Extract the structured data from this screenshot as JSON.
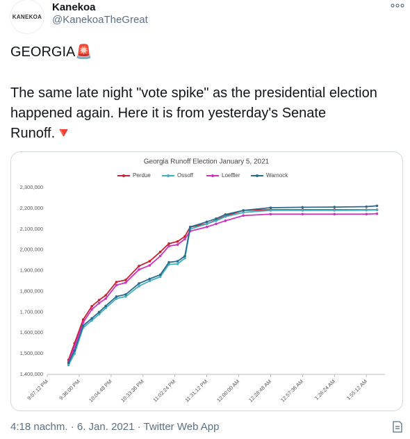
{
  "tweet": {
    "avatar_text": "KANEKOA",
    "name": "Kanekoa",
    "handle": "@KanekoaTheGreat",
    "text": [
      "GEORGIA🚨",
      "The same late night \"vote spike\" as the presidential election happened again. Here it is from yesterday's Senate Runoff.🔻"
    ],
    "footer": "4:18 nachm. · 6. Jan. 2021 · Twitter Web App"
  },
  "chart_data": {
    "type": "line",
    "title": "Georgia Runoff Election January 5, 2021",
    "x": [
      21.44,
      21.53,
      21.66,
      21.79,
      21.9,
      22.0,
      22.16,
      22.3,
      22.5,
      22.66,
      22.82,
      22.95,
      23.08,
      23.19,
      23.27,
      23.52,
      23.66,
      23.8,
      24.07,
      24.48,
      24.96,
      25.44,
      25.92,
      26.08
    ],
    "series": [
      {
        "name": "Perdue",
        "color": "#c8202c",
        "values": [
          1470000,
          1550000,
          1664000,
          1728000,
          1758000,
          1781000,
          1845000,
          1855000,
          1922000,
          1945000,
          1990000,
          2030000,
          2040000,
          2065000,
          2110000,
          2125000,
          2143000,
          2163000,
          2190000,
          2193000,
          2193000,
          2193000,
          2193000,
          2193000
        ]
      },
      {
        "name": "Ossoff",
        "color": "#3fb0c0",
        "values": [
          1445000,
          1500000,
          1625000,
          1660000,
          1690000,
          1720000,
          1765000,
          1775000,
          1825000,
          1850000,
          1870000,
          1930000,
          1932000,
          1960000,
          2100000,
          2125000,
          2140000,
          2160000,
          2180000,
          2190000,
          2190000,
          2190000,
          2191000,
          2192000
        ]
      },
      {
        "name": "Loeffler",
        "color": "#d030c0",
        "values": [
          1460000,
          1535000,
          1650000,
          1713000,
          1743000,
          1765000,
          1830000,
          1842000,
          1905000,
          1925000,
          1970000,
          2018000,
          2025000,
          2052000,
          2090000,
          2110000,
          2125000,
          2140000,
          2165000,
          2172000,
          2172000,
          2172000,
          2172000,
          2174000
        ]
      },
      {
        "name": "Warnock",
        "color": "#2a6a8c",
        "values": [
          1455000,
          1515000,
          1635000,
          1670000,
          1700000,
          1730000,
          1775000,
          1785000,
          1838000,
          1860000,
          1880000,
          1940000,
          1945000,
          1970000,
          2110000,
          2135000,
          2150000,
          2170000,
          2190000,
          2203000,
          2205000,
          2206000,
          2208000,
          2212000
        ]
      }
    ],
    "xlim": [
      21.12,
      26.2
    ],
    "xticks": [
      {
        "value": 21.12,
        "label": "9:07:12 PM"
      },
      {
        "value": 21.6,
        "label": "9:36:00 PM"
      },
      {
        "value": 22.08,
        "label": "10:04:48 PM"
      },
      {
        "value": 22.56,
        "label": "10:33:36 PM"
      },
      {
        "value": 23.04,
        "label": "11:02:24 PM"
      },
      {
        "value": 23.52,
        "label": "11:31:12 PM"
      },
      {
        "value": 24.0,
        "label": "12:00:00 AM"
      },
      {
        "value": 24.48,
        "label": "12:28:48 AM"
      },
      {
        "value": 24.96,
        "label": "12:57:36 AM"
      },
      {
        "value": 25.44,
        "label": "1:26:24 AM"
      },
      {
        "value": 25.92,
        "label": "1:55:12 AM"
      }
    ],
    "ylim": [
      1400000,
      2300000
    ],
    "yticks": [
      {
        "value": 1400000,
        "label": "1,400,000"
      },
      {
        "value": 1500000,
        "label": "1,500,000"
      },
      {
        "value": 1600000,
        "label": "1,600,000"
      },
      {
        "value": 1700000,
        "label": "1,700,000"
      },
      {
        "value": 1800000,
        "label": "1,800,000"
      },
      {
        "value": 1900000,
        "label": "1,900,000"
      },
      {
        "value": 2000000,
        "label": "2,000,000"
      },
      {
        "value": 2100000,
        "label": "2,100,000"
      },
      {
        "value": 2200000,
        "label": "2,200,000"
      },
      {
        "value": 2300000,
        "label": "2,300,000"
      }
    ],
    "grid": false,
    "legend": "top"
  }
}
